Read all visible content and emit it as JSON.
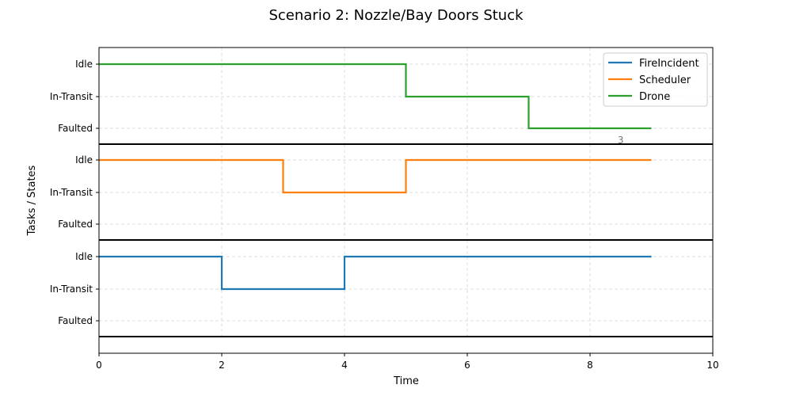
{
  "chart_data": {
    "type": "line",
    "step": "post",
    "title": "Scenario 2: Nozzle/Bay Doors Stuck",
    "xlabel": "Time",
    "ylabel": "Tasks / States",
    "xlim": [
      0,
      10
    ],
    "xticks": [
      0,
      2,
      4,
      6,
      8,
      10
    ],
    "state_labels": [
      "Idle",
      "In-Transit",
      "Faulted"
    ],
    "grid": true,
    "legend_position": "top-right",
    "lanes": [
      "Drone",
      "Scheduler",
      "FireIncident"
    ],
    "series": [
      {
        "name": "FireIncident",
        "color": "#1f77b4",
        "lane": "FireIncident",
        "points": [
          [
            0,
            "Idle"
          ],
          [
            2,
            "In-Transit"
          ],
          [
            4,
            "Idle"
          ],
          [
            9,
            "Idle"
          ]
        ]
      },
      {
        "name": "Scheduler",
        "color": "#ff7f0e",
        "lane": "Scheduler",
        "points": [
          [
            0,
            "Idle"
          ],
          [
            3,
            "In-Transit"
          ],
          [
            5,
            "Idle"
          ],
          [
            9,
            "Idle"
          ]
        ]
      },
      {
        "name": "Drone",
        "color": "#2ca02c",
        "lane": "Drone",
        "points": [
          [
            0,
            "Idle"
          ],
          [
            5,
            "In-Transit"
          ],
          [
            7,
            "Faulted"
          ],
          [
            9,
            "Faulted"
          ]
        ]
      }
    ],
    "annotations": [
      {
        "text": "3",
        "x": 8.5,
        "y": "Faulted",
        "lane": "Drone"
      }
    ]
  }
}
